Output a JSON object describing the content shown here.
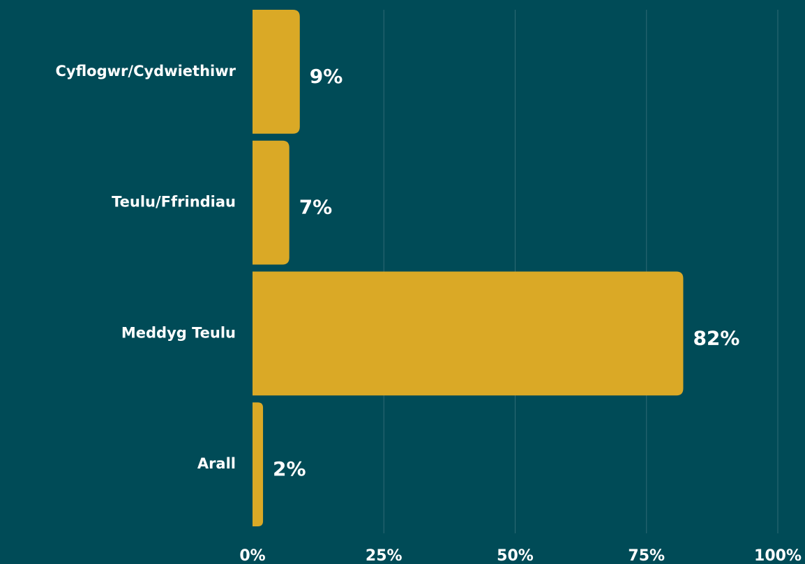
{
  "chart_data": {
    "type": "bar",
    "orientation": "horizontal",
    "categories": [
      "Cyflogwr/Cydwiethiwr",
      "Teulu/Ffrindiau",
      "Meddyg Teulu",
      "Arall"
    ],
    "values": [
      9,
      7,
      82,
      2
    ],
    "value_labels": [
      "9%",
      "7%",
      "82%",
      "2%"
    ],
    "color": "#daa926",
    "xlim": [
      0,
      100
    ],
    "xticks": [
      {
        "value": 0,
        "label": "0%"
      },
      {
        "value": 25,
        "label": "25%"
      },
      {
        "value": 50,
        "label": "50%"
      },
      {
        "value": 75,
        "label": "75%"
      },
      {
        "value": 100,
        "label": "100%"
      }
    ],
    "grid": true
  }
}
